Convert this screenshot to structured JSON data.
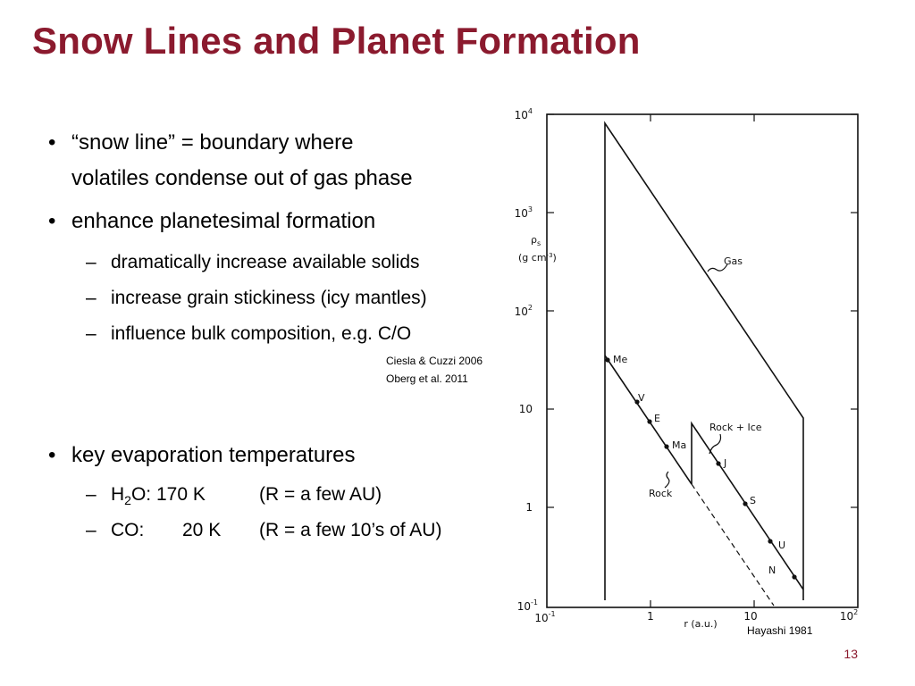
{
  "slide": {
    "title": "Snow Lines and Planet Formation",
    "page_number": "13"
  },
  "bullets": {
    "b1_line1": "“snow line” = boundary where",
    "b1_line2": "volatiles condense out of gas phase",
    "b2": "enhance planetesimal formation",
    "b2_subs": [
      "dramatically increase available solids",
      "increase grain stickiness (icy mantles)",
      "influence bulk composition, e.g. C/O"
    ],
    "citations": [
      "Ciesla & Cuzzi 2006",
      "Oberg et al. 2011"
    ],
    "b3": "key evaporation temperatures",
    "b3_subs": {
      "h2o_h": "H",
      "h2o_sub": "2",
      "h2o_rest": "O: 170 K",
      "h2o_r": "(R = a few AU)",
      "co_label": "CO:",
      "co_temp": "20 K",
      "co_r": "(R = a few 10’s of AU)"
    },
    "bullet_symbol": "•",
    "dash_symbol": "–"
  },
  "figure": {
    "credit": "Hayashi 1981",
    "y_axis_label_top": "ρ",
    "y_axis_label_sub": "s",
    "y_axis_units": "(g cm",
    "y_axis_units_exp": "-3",
    "y_axis_units_end": ")",
    "x_axis_label": "r (a.u.)",
    "y_tick_labels": [
      {
        "base": "10",
        "exp": "4"
      },
      {
        "base": "10",
        "exp": "3"
      },
      {
        "base": "10",
        "exp": "2"
      },
      {
        "base": "10",
        "exp": ""
      },
      {
        "base": "1",
        "exp": ""
      },
      {
        "base": "10",
        "exp": "-1"
      }
    ],
    "x_tick_labels": [
      {
        "base": "10",
        "exp": "-1"
      },
      {
        "base": "1",
        "exp": ""
      },
      {
        "base": "10",
        "exp": ""
      },
      {
        "base": "10",
        "exp": "2"
      }
    ],
    "curve_labels": {
      "gas": "Gas",
      "rock": "Rock",
      "rock_ice": "Rock + Ice"
    },
    "planets": [
      "Me",
      "V",
      "E",
      "Ma",
      "J",
      "S",
      "U",
      "N"
    ]
  }
}
